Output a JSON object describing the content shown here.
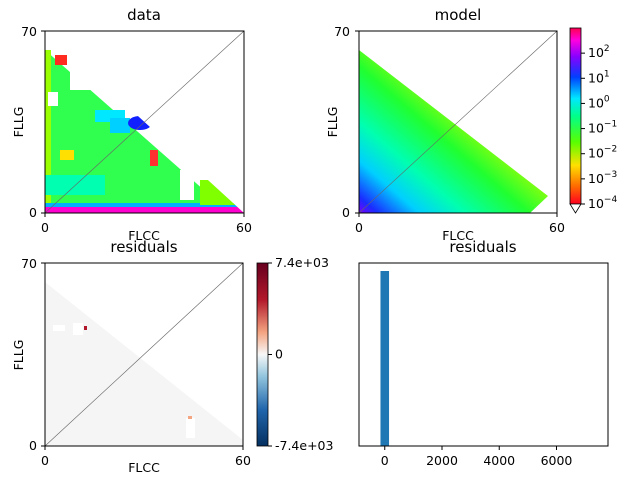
{
  "chart_data": [
    {
      "type": "heatmap",
      "title": "data",
      "xlabel": "FLCC",
      "ylabel": "FLLG",
      "xlim": [
        0,
        60
      ],
      "ylim": [
        0,
        70
      ],
      "x_ticks": [
        "0",
        "60"
      ],
      "y_ticks": [
        "0",
        "70"
      ],
      "colormap": "gist_rainbow (log scale)",
      "triangle_region": "below diagonal, x + y <= 70",
      "diagonal_line": true
    },
    {
      "type": "heatmap",
      "title": "model",
      "xlabel": "FLCC",
      "ylabel": "FLLG",
      "xlim": [
        0,
        60
      ],
      "ylim": [
        0,
        70
      ],
      "x_ticks": [
        "0",
        "60"
      ],
      "y_ticks": [
        "0",
        "70"
      ],
      "colormap": "gist_rainbow (log scale)",
      "colorbar": {
        "scale": "log",
        "range": [
          0.0001,
          1000
        ],
        "tick_labels": [
          {
            "base": "10",
            "exp": "2",
            "value": 100
          },
          {
            "base": "10",
            "exp": "1",
            "value": 10
          },
          {
            "base": "10",
            "exp": "0",
            "value": 1
          },
          {
            "base": "10",
            "exp": "−1",
            "value": 0.1
          },
          {
            "base": "10",
            "exp": "−2",
            "value": 0.01
          },
          {
            "base": "10",
            "exp": "−3",
            "value": 0.001
          },
          {
            "base": "10",
            "exp": "−4",
            "value": 0.0001
          }
        ],
        "extend": "min"
      },
      "diagonal_line": true
    },
    {
      "type": "heatmap",
      "title": "residuals",
      "xlabel": "FLCC",
      "ylabel": "FLLG",
      "xlim": [
        0,
        60
      ],
      "ylim": [
        0,
        70
      ],
      "x_ticks": [
        "0",
        "60"
      ],
      "y_ticks": [
        "0",
        "70"
      ],
      "colormap": "RdBu_r",
      "colorbar": {
        "range": [
          -7400,
          7400
        ],
        "tick_labels": [
          {
            "label": "7.4e+03",
            "value": 7400
          },
          {
            "label": "0",
            "value": 0
          },
          {
            "label": "-7.4e+03",
            "value": -7400
          }
        ]
      },
      "diagonal_line": true
    },
    {
      "type": "bar",
      "title": "residuals",
      "xlim": [
        -900,
        7800
      ],
      "x_ticks": [
        {
          "label": "0",
          "value": 0
        },
        {
          "label": "2000",
          "value": 2000
        },
        {
          "label": "4000",
          "value": 4000
        },
        {
          "label": "6000",
          "value": 6000
        }
      ],
      "bars": [
        {
          "x0": -150,
          "x1": 150,
          "height": 1.0
        }
      ],
      "color": "#1f77b4"
    }
  ]
}
